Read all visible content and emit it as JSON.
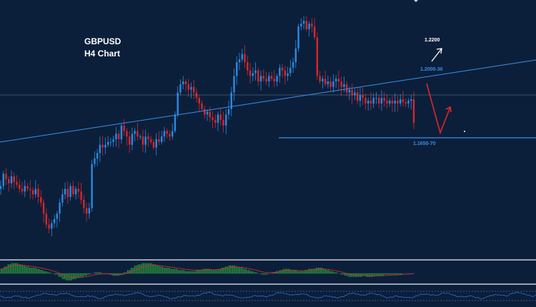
{
  "chart_data": {
    "type": "candlestick",
    "title": "GBPUSD",
    "subtitle": "H4 Chart",
    "y_range": [
      1.152,
      1.235
    ],
    "colors": {
      "background": "#0b1f3a",
      "bull": "#2b8be0",
      "bear": "#d8262d",
      "trendline": "#3a8fe8",
      "support_line": "#3a8fe8",
      "arrow_up_white": "#ffffff",
      "arrow_red": "#e1262b",
      "macd_hist": "#2fae3a",
      "macd_signal": "#e02a2a",
      "rsi_line": "#2f6fd0"
    },
    "annotations": {
      "target_high": "1.2200",
      "resistance": "1.2000-30",
      "support": "1.1650-70"
    },
    "levels": {
      "support": 1.166,
      "horizontal_ref": 1.192,
      "trendline": [
        [
          0,
          1.172
        ],
        [
          750,
          1.206
        ]
      ]
    },
    "candles_close": [
      1.17,
      1.1745,
      1.1725,
      1.171,
      1.1735,
      1.1715,
      1.1705,
      1.169,
      1.168,
      1.17,
      1.169,
      1.1685,
      1.167,
      1.169,
      1.166,
      1.164,
      1.16,
      1.156,
      1.1545,
      1.1565,
      1.158,
      1.16,
      1.164,
      1.167,
      1.169,
      1.166,
      1.17,
      1.167,
      1.169,
      1.168,
      1.165,
      1.162,
      1.16,
      1.162,
      1.178,
      1.18,
      1.182,
      1.185,
      1.184,
      1.185,
      1.186,
      1.186,
      1.187,
      1.189,
      1.187,
      1.192,
      1.19,
      1.188,
      1.185,
      1.189,
      1.19,
      1.188,
      1.188,
      1.185,
      1.188,
      1.187,
      1.186,
      1.184,
      1.187,
      1.186,
      1.188,
      1.19,
      1.189,
      1.188,
      1.19,
      1.196,
      1.204,
      1.207,
      1.208,
      1.207,
      1.205,
      1.206,
      1.204,
      1.202,
      1.2,
      1.198,
      1.196,
      1.197,
      1.195,
      1.194,
      1.193,
      1.196,
      1.194,
      1.192,
      1.196,
      1.198,
      1.204,
      1.21,
      1.215,
      1.216,
      1.218,
      1.215,
      1.212,
      1.21,
      1.211,
      1.212,
      1.208,
      1.21,
      1.209,
      1.208,
      1.21,
      1.209,
      1.208,
      1.21,
      1.213,
      1.212,
      1.21,
      1.211,
      1.213,
      1.215,
      1.22,
      1.228,
      1.229,
      1.23,
      1.227,
      1.229,
      1.228,
      1.224,
      1.21,
      1.208,
      1.209,
      1.207,
      1.208,
      1.206,
      1.208,
      1.209,
      1.208,
      1.206,
      1.207,
      1.204,
      1.205,
      1.203,
      1.204,
      1.201,
      1.203,
      1.202,
      1.2,
      1.201,
      1.2,
      1.202,
      1.202,
      1.2,
      1.202,
      1.201,
      1.2,
      1.201,
      1.2,
      1.201,
      1.2,
      1.2015,
      1.2005,
      1.2,
      1.201,
      1.2015,
      1.193
    ],
    "macd_hist": [
      4,
      6,
      8,
      9,
      9,
      8,
      7,
      6,
      5,
      5,
      4,
      3,
      2,
      1,
      0,
      -1,
      -3,
      -5,
      -6,
      -6,
      -5,
      -4,
      -3,
      -2,
      -1,
      0,
      1,
      1,
      0,
      0,
      -1,
      -2,
      -2,
      -1,
      1,
      3,
      5,
      7,
      8,
      9,
      9,
      9,
      8,
      7,
      6,
      5,
      5,
      4,
      4,
      3,
      3,
      2,
      2,
      2,
      3,
      3,
      4,
      4,
      3,
      3,
      4,
      5,
      6,
      7,
      7,
      6,
      5,
      4,
      3,
      2,
      1,
      0,
      -1,
      -1,
      0,
      1,
      2,
      3,
      4,
      4,
      3,
      3,
      2,
      2,
      3,
      4,
      4,
      5,
      5,
      4,
      3,
      2,
      1,
      0,
      -1,
      -2,
      -3,
      -3,
      -3,
      -3,
      -2,
      -3,
      -3,
      -2,
      -2,
      -2,
      -1,
      -1,
      -1,
      -1,
      -1,
      0,
      0,
      0,
      0
    ]
  }
}
